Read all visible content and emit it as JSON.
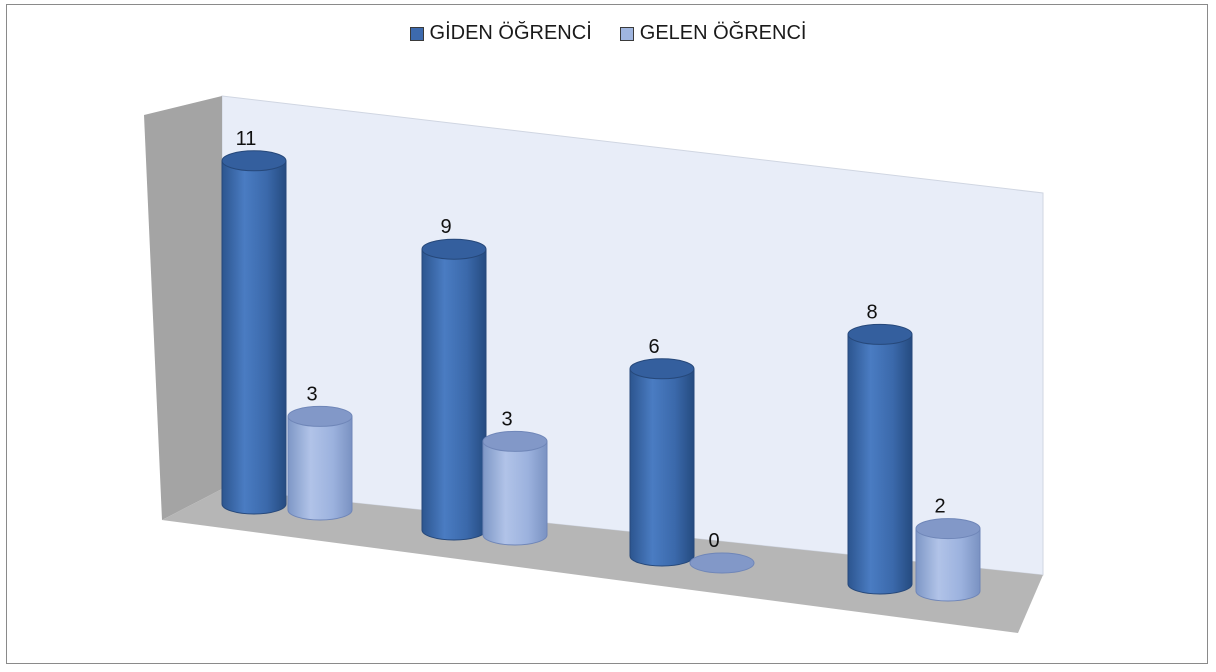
{
  "chart_data": {
    "type": "bar",
    "style": "3d-cylinder",
    "categories": [
      "",
      "",
      "",
      ""
    ],
    "series": [
      {
        "name": "GİDEN ÖĞRENCİ",
        "values": [
          11,
          9,
          6,
          8
        ],
        "color": "#3d6aae"
      },
      {
        "name": "GELEN ÖĞRENCİ",
        "values": [
          3,
          3,
          0,
          2
        ],
        "color": "#9fb5df"
      }
    ],
    "ylim": [
      0,
      12
    ],
    "grid": false,
    "legend_position": "top",
    "data_labels": [
      "11",
      "9",
      "6",
      "8",
      "3",
      "3",
      "0",
      "2"
    ],
    "colors": {
      "back_wall": "#e8edf8",
      "side_wall": "#a4a4a4",
      "floor": "#b6b6b6"
    }
  }
}
